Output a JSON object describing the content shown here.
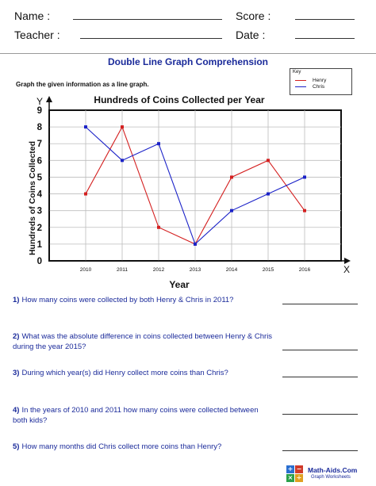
{
  "header": {
    "name_label": "Name :",
    "score_label": "Score :",
    "teacher_label": "Teacher :",
    "date_label": "Date :"
  },
  "worksheet_title": "Double Line Graph Comprehension",
  "instruction": "Graph the given information as a line graph.",
  "key": {
    "title": "Key",
    "items": [
      {
        "label": "Henry",
        "color": "#d42020"
      },
      {
        "label": "Chris",
        "color": "#1b22c8"
      }
    ]
  },
  "chart_data": {
    "type": "line",
    "title": "Hundreds of Coins Collected per Year",
    "xlabel": "Year",
    "ylabel": "Hundreds of Coins Collected",
    "x_axis_letter": "X",
    "y_axis_letter": "Y",
    "categories": [
      "2010",
      "2011",
      "2012",
      "2013",
      "2014",
      "2015",
      "2016"
    ],
    "ylim": [
      0,
      9
    ],
    "yticks": [
      "0",
      "1",
      "2",
      "3",
      "4",
      "5",
      "6",
      "7",
      "8",
      "9"
    ],
    "grid": true,
    "series": [
      {
        "name": "Henry",
        "color": "#d42020",
        "values": [
          4,
          8,
          2,
          1,
          5,
          6,
          3
        ]
      },
      {
        "name": "Chris",
        "color": "#1b22c8",
        "values": [
          8,
          6,
          7,
          1,
          3,
          4,
          5
        ]
      }
    ]
  },
  "questions": [
    {
      "num": "1)",
      "text": "How many coins were collected by both Henry & Chris in 2011?"
    },
    {
      "num": "2)",
      "text": "What was the absolute difference in coins collected between Henry & Chris during the year 2015?"
    },
    {
      "num": "3)",
      "text": "During which year(s) did Henry collect more coins than Chris?"
    },
    {
      "num": "4)",
      "text": "In the years of 2010 and 2011 how many coins were collected between both kids?"
    },
    {
      "num": "5)",
      "text": "How many months did Chris collect more coins than Henry?"
    }
  ],
  "branding": {
    "name": "Math-Aids.Com",
    "sub": "Graph Worksheets",
    "logo_cells": [
      {
        "symbol": "+",
        "color": "#2a6fd0"
      },
      {
        "symbol": "−",
        "color": "#d03a2a"
      },
      {
        "symbol": "×",
        "color": "#2aa04a"
      },
      {
        "symbol": "÷",
        "color": "#e0a020"
      }
    ]
  }
}
